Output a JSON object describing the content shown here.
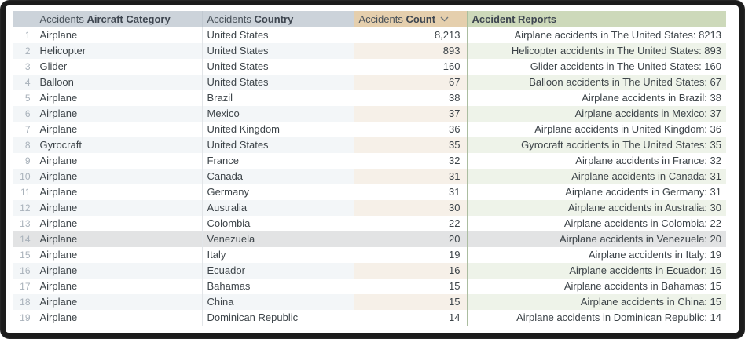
{
  "table": {
    "header": {
      "columns": [
        {
          "id": "row-number",
          "prefix": "",
          "label": ""
        },
        {
          "id": "aircraft-category",
          "prefix": "Accidents",
          "label": "Aircraft Category"
        },
        {
          "id": "country",
          "prefix": "Accidents",
          "label": "Country"
        },
        {
          "id": "count",
          "prefix": "Accidents",
          "label": "Count",
          "sort_icon": "chevron-down"
        },
        {
          "id": "reports",
          "prefix": "",
          "label": "Accident Reports"
        }
      ]
    },
    "rows": [
      {
        "row_number": 1,
        "aircraft_category": "Airplane",
        "country": "United States",
        "count": "8,213",
        "accident_report": "Airplane accidents in The United States: 8213"
      },
      {
        "row_number": 2,
        "aircraft_category": "Helicopter",
        "country": "United States",
        "count": "893",
        "accident_report": "Helicopter accidents in The United States: 893"
      },
      {
        "row_number": 3,
        "aircraft_category": "Glider",
        "country": "United States",
        "count": "160",
        "accident_report": "Glider accidents in The United States: 160"
      },
      {
        "row_number": 4,
        "aircraft_category": "Balloon",
        "country": "United States",
        "count": "67",
        "accident_report": "Balloon accidents in The United States: 67"
      },
      {
        "row_number": 5,
        "aircraft_category": "Airplane",
        "country": "Brazil",
        "count": "38",
        "accident_report": "Airplane accidents in Brazil: 38"
      },
      {
        "row_number": 6,
        "aircraft_category": "Airplane",
        "country": "Mexico",
        "count": "37",
        "accident_report": "Airplane accidents in Mexico: 37"
      },
      {
        "row_number": 7,
        "aircraft_category": "Airplane",
        "country": "United Kingdom",
        "count": "36",
        "accident_report": "Airplane accidents in United Kingdom: 36"
      },
      {
        "row_number": 8,
        "aircraft_category": "Gyrocraft",
        "country": "United States",
        "count": "35",
        "accident_report": "Gyrocraft accidents in The United States: 35"
      },
      {
        "row_number": 9,
        "aircraft_category": "Airplane",
        "country": "France",
        "count": "32",
        "accident_report": "Airplane accidents in France: 32"
      },
      {
        "row_number": 10,
        "aircraft_category": "Airplane",
        "country": "Canada",
        "count": "31",
        "accident_report": "Airplane accidents in Canada: 31"
      },
      {
        "row_number": 11,
        "aircraft_category": "Airplane",
        "country": "Germany",
        "count": "31",
        "accident_report": "Airplane accidents in Germany: 31"
      },
      {
        "row_number": 12,
        "aircraft_category": "Airplane",
        "country": "Australia",
        "count": "30",
        "accident_report": "Airplane accidents in Australia: 30"
      },
      {
        "row_number": 13,
        "aircraft_category": "Airplane",
        "country": "Colombia",
        "count": "22",
        "accident_report": "Airplane accidents in Colombia: 22"
      },
      {
        "row_number": 14,
        "aircraft_category": "Airplane",
        "country": "Venezuela",
        "count": "20",
        "accident_report": "Airplane accidents in Venezuela: 20"
      },
      {
        "row_number": 15,
        "aircraft_category": "Airplane",
        "country": "Italy",
        "count": "19",
        "accident_report": "Airplane accidents in Italy: 19"
      },
      {
        "row_number": 16,
        "aircraft_category": "Airplane",
        "country": "Ecuador",
        "count": "16",
        "accident_report": "Airplane accidents in Ecuador: 16"
      },
      {
        "row_number": 17,
        "aircraft_category": "Airplane",
        "country": "Bahamas",
        "count": "15",
        "accident_report": "Airplane accidents in Bahamas: 15"
      },
      {
        "row_number": 18,
        "aircraft_category": "Airplane",
        "country": "China",
        "count": "15",
        "accident_report": "Airplane accidents in China: 15"
      },
      {
        "row_number": 19,
        "aircraft_category": "Airplane",
        "country": "Dominican Republic",
        "count": "14",
        "accident_report": "Airplane accidents in Dominican Republic: 14"
      }
    ],
    "highlighted_row_number": 14
  },
  "colors": {
    "header_bg": "#ccd3da",
    "count_header_bg": "#e5cfad",
    "reports_header_bg": "#cdd9ba",
    "row_stripe": "#f3f6f8",
    "count_stripe": "#f6f0e8",
    "reports_stripe": "#eef3e9",
    "highlighted_row": "#e2e3e4",
    "count_column_border": "#d3bf9a",
    "reports_column_border": "#abbda0",
    "frame": "#1b1b1b"
  }
}
